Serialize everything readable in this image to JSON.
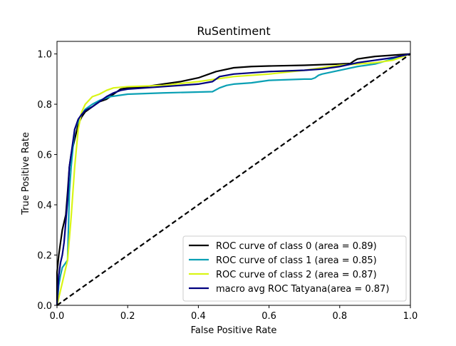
{
  "chart_data": {
    "type": "line",
    "title": "RuSentiment",
    "xlabel": "False Positive Rate",
    "ylabel": "True Positive Rate",
    "xlim": [
      0.0,
      1.0
    ],
    "ylim": [
      0.0,
      1.05
    ],
    "x_ticks": [
      "0.0",
      "0.2",
      "0.4",
      "0.6",
      "0.8",
      "1.0"
    ],
    "y_ticks": [
      "0.0",
      "0.2",
      "0.4",
      "0.6",
      "0.8",
      "1.0"
    ],
    "grid": false,
    "legend_position": "lower-right",
    "series": [
      {
        "name": "ROC curve of class 0 (area = 0.89)",
        "color": "#000000",
        "points": [
          [
            0.0,
            0.0
          ],
          [
            0.0,
            0.13
          ],
          [
            0.005,
            0.2
          ],
          [
            0.01,
            0.25
          ],
          [
            0.015,
            0.3
          ],
          [
            0.02,
            0.33
          ],
          [
            0.025,
            0.36
          ],
          [
            0.03,
            0.45
          ],
          [
            0.035,
            0.55
          ],
          [
            0.04,
            0.6
          ],
          [
            0.05,
            0.66
          ],
          [
            0.06,
            0.72
          ],
          [
            0.07,
            0.75
          ],
          [
            0.08,
            0.77
          ],
          [
            0.1,
            0.79
          ],
          [
            0.12,
            0.81
          ],
          [
            0.14,
            0.82
          ],
          [
            0.16,
            0.84
          ],
          [
            0.18,
            0.86
          ],
          [
            0.2,
            0.865
          ],
          [
            0.25,
            0.87
          ],
          [
            0.3,
            0.88
          ],
          [
            0.35,
            0.89
          ],
          [
            0.4,
            0.905
          ],
          [
            0.45,
            0.93
          ],
          [
            0.5,
            0.945
          ],
          [
            0.55,
            0.95
          ],
          [
            0.6,
            0.952
          ],
          [
            0.7,
            0.955
          ],
          [
            0.8,
            0.96
          ],
          [
            0.83,
            0.962
          ],
          [
            0.84,
            0.972
          ],
          [
            0.85,
            0.98
          ],
          [
            0.9,
            0.99
          ],
          [
            0.95,
            0.995
          ],
          [
            1.0,
            1.0
          ]
        ]
      },
      {
        "name": "ROC curve of class 1 (area = 0.85)",
        "color": "#0aa0b4",
        "points": [
          [
            0.0,
            0.0
          ],
          [
            0.005,
            0.08
          ],
          [
            0.01,
            0.12
          ],
          [
            0.015,
            0.15
          ],
          [
            0.02,
            0.16
          ],
          [
            0.025,
            0.17
          ],
          [
            0.03,
            0.18
          ],
          [
            0.035,
            0.45
          ],
          [
            0.04,
            0.55
          ],
          [
            0.05,
            0.7
          ],
          [
            0.06,
            0.73
          ],
          [
            0.07,
            0.76
          ],
          [
            0.08,
            0.78
          ],
          [
            0.1,
            0.8
          ],
          [
            0.12,
            0.815
          ],
          [
            0.15,
            0.83
          ],
          [
            0.2,
            0.84
          ],
          [
            0.3,
            0.845
          ],
          [
            0.44,
            0.85
          ],
          [
            0.46,
            0.865
          ],
          [
            0.48,
            0.875
          ],
          [
            0.5,
            0.88
          ],
          [
            0.55,
            0.885
          ],
          [
            0.6,
            0.895
          ],
          [
            0.7,
            0.9
          ],
          [
            0.72,
            0.9
          ],
          [
            0.73,
            0.905
          ],
          [
            0.74,
            0.915
          ],
          [
            0.75,
            0.92
          ],
          [
            0.8,
            0.935
          ],
          [
            0.85,
            0.95
          ],
          [
            0.9,
            0.96
          ],
          [
            1.0,
            1.0
          ]
        ]
      },
      {
        "name": "ROC curve of class 2 (area = 0.87)",
        "color": "#d9f516",
        "points": [
          [
            0.0,
            0.0
          ],
          [
            0.01,
            0.06
          ],
          [
            0.02,
            0.12
          ],
          [
            0.03,
            0.18
          ],
          [
            0.04,
            0.35
          ],
          [
            0.05,
            0.55
          ],
          [
            0.06,
            0.7
          ],
          [
            0.07,
            0.77
          ],
          [
            0.08,
            0.8
          ],
          [
            0.1,
            0.83
          ],
          [
            0.12,
            0.84
          ],
          [
            0.14,
            0.855
          ],
          [
            0.16,
            0.865
          ],
          [
            0.2,
            0.87
          ],
          [
            0.3,
            0.875
          ],
          [
            0.4,
            0.89
          ],
          [
            0.5,
            0.91
          ],
          [
            0.6,
            0.92
          ],
          [
            0.7,
            0.935
          ],
          [
            0.8,
            0.955
          ],
          [
            0.9,
            0.965
          ],
          [
            0.95,
            0.975
          ],
          [
            1.0,
            1.0
          ]
        ]
      },
      {
        "name": "macro avg ROC Tatyana(area = 0.87)",
        "color": "#00007f",
        "points": [
          [
            0.0,
            0.0
          ],
          [
            0.005,
            0.12
          ],
          [
            0.01,
            0.17
          ],
          [
            0.015,
            0.2
          ],
          [
            0.02,
            0.25
          ],
          [
            0.03,
            0.42
          ],
          [
            0.035,
            0.55
          ],
          [
            0.04,
            0.6
          ],
          [
            0.05,
            0.7
          ],
          [
            0.06,
            0.74
          ],
          [
            0.07,
            0.76
          ],
          [
            0.08,
            0.775
          ],
          [
            0.1,
            0.79
          ],
          [
            0.12,
            0.81
          ],
          [
            0.14,
            0.83
          ],
          [
            0.16,
            0.845
          ],
          [
            0.18,
            0.855
          ],
          [
            0.2,
            0.86
          ],
          [
            0.25,
            0.865
          ],
          [
            0.3,
            0.87
          ],
          [
            0.35,
            0.875
          ],
          [
            0.4,
            0.88
          ],
          [
            0.44,
            0.89
          ],
          [
            0.46,
            0.91
          ],
          [
            0.5,
            0.92
          ],
          [
            0.55,
            0.925
          ],
          [
            0.6,
            0.93
          ],
          [
            0.7,
            0.935
          ],
          [
            0.75,
            0.94
          ],
          [
            0.8,
            0.95
          ],
          [
            0.85,
            0.965
          ],
          [
            0.9,
            0.975
          ],
          [
            0.95,
            0.985
          ],
          [
            1.0,
            1.0
          ]
        ]
      },
      {
        "name": "",
        "color": "#000000",
        "dashed": true,
        "points": [
          [
            0.0,
            0.0
          ],
          [
            1.0,
            1.0
          ]
        ]
      }
    ],
    "legend": [
      {
        "label": "ROC curve of class 0 (area = 0.89)",
        "color": "#000000"
      },
      {
        "label": "ROC curve of class 1 (area = 0.85)",
        "color": "#0aa0b4"
      },
      {
        "label": "ROC curve of class 2 (area = 0.87)",
        "color": "#d9f516"
      },
      {
        "label": "macro avg ROC Tatyana(area = 0.87)",
        "color": "#00007f"
      }
    ]
  }
}
